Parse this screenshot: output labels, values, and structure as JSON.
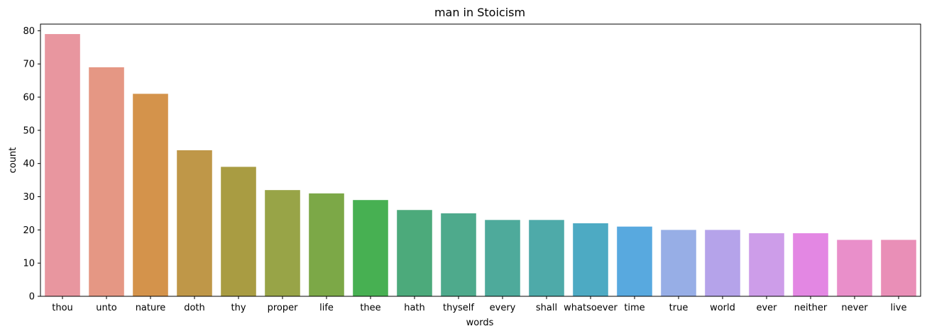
{
  "chart_data": {
    "type": "bar",
    "title": "man in Stoicism",
    "xlabel": "words",
    "ylabel": "count",
    "ylim": [
      0,
      82
    ],
    "yticks": [
      0,
      10,
      20,
      30,
      40,
      50,
      60,
      70,
      80
    ],
    "grid": false,
    "categories": [
      "thou",
      "unto",
      "nature",
      "doth",
      "thy",
      "proper",
      "life",
      "thee",
      "hath",
      "thyself",
      "every",
      "shall",
      "whatsoever",
      "time",
      "true",
      "world",
      "ever",
      "neither",
      "never",
      "live"
    ],
    "values": [
      79,
      69,
      61,
      44,
      39,
      32,
      31,
      29,
      26,
      25,
      23,
      23,
      22,
      21,
      20,
      20,
      19,
      19,
      17,
      17
    ],
    "colors": [
      "#e8969f",
      "#e59784",
      "#d4934b",
      "#bf9748",
      "#a99c42",
      "#98a447",
      "#7ca847",
      "#47b052",
      "#4caa7b",
      "#4eaa8c",
      "#4eaa9b",
      "#4eaaa9",
      "#4daac3",
      "#58a9df",
      "#97aee6",
      "#b5a3ea",
      "#cd9de9",
      "#e387e3",
      "#e98fca",
      "#e98fb7"
    ]
  }
}
